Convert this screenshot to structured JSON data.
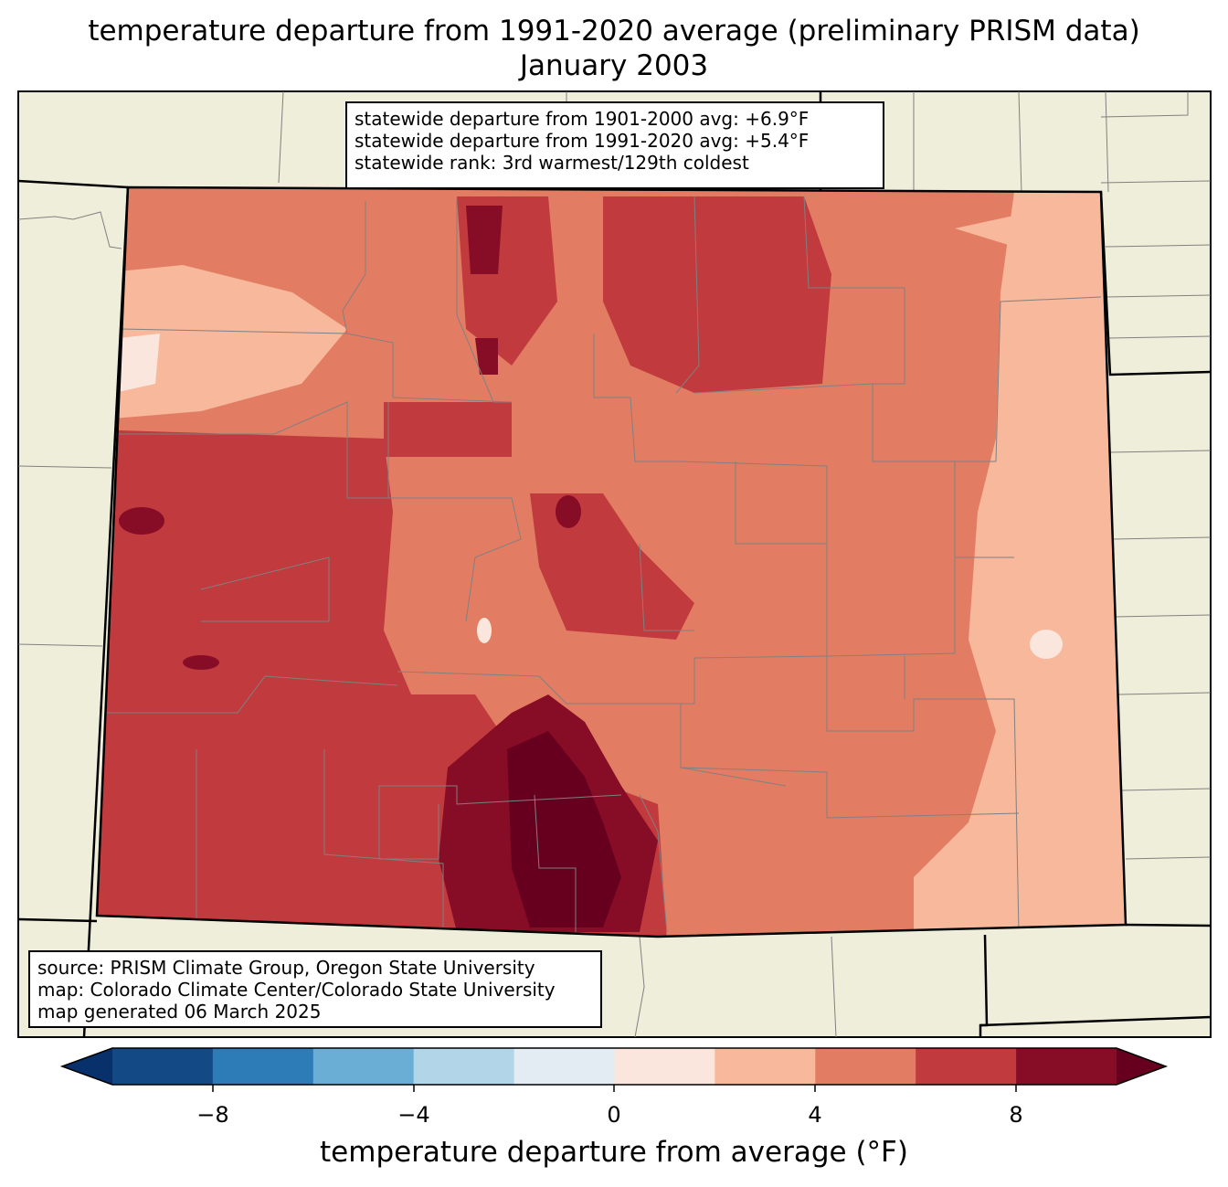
{
  "title": {
    "line1": "temperature departure from 1991-2020 average (preliminary PRISM data)",
    "line2": "January 2003"
  },
  "stats": {
    "line1": "statewide departure from 1901-2000 avg: +6.9°F",
    "line2": "statewide departure from 1991-2020 avg: +5.4°F",
    "line3": "statewide rank: 3rd warmest/129th coldest"
  },
  "credits": {
    "line1": "source: PRISM Climate Group, Oregon State University",
    "line2": "map: Colorado Climate Center/Colorado State University",
    "line3": "map generated 06 March 2025"
  },
  "colorbar": {
    "label": "temperature departure from average (°F)",
    "ticks": [
      "−8",
      "−4",
      "0",
      "4",
      "8"
    ],
    "levels": [
      -10,
      -8,
      -6,
      -4,
      -2,
      0,
      2,
      4,
      6,
      8,
      10
    ],
    "colors": [
      "#08306b",
      "#134a86",
      "#2e7cb7",
      "#6aaed6",
      "#b3d5e8",
      "#e3ecf3",
      "#fae6dd",
      "#f7b89c",
      "#e27d64",
      "#c13a3e",
      "#870d27",
      "#67001f"
    ]
  },
  "map_colors": {
    "land": "#efeedb",
    "state_border": "#000000",
    "county_lines": "#808080"
  }
}
